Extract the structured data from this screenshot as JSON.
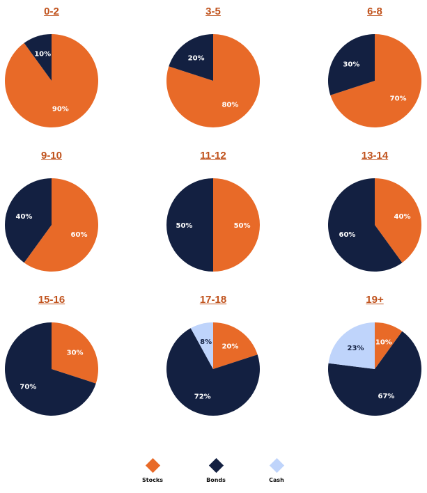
{
  "colors": {
    "stocks": "#e86a28",
    "bonds": "#132041",
    "cash": "#bfd4fb"
  },
  "legend": [
    {
      "key": "stocks",
      "label": "Stocks"
    },
    {
      "key": "bonds",
      "label": "Bonds"
    },
    {
      "key": "cash",
      "label": "Cash"
    }
  ],
  "chart_data": [
    {
      "type": "pie",
      "title": "0-2",
      "slices": [
        {
          "key": "stocks",
          "value": 90,
          "label": "90%"
        },
        {
          "key": "bonds",
          "value": 10,
          "label": "10%"
        }
      ]
    },
    {
      "type": "pie",
      "title": "3-5",
      "slices": [
        {
          "key": "stocks",
          "value": 80,
          "label": "80%"
        },
        {
          "key": "bonds",
          "value": 20,
          "label": "20%"
        }
      ]
    },
    {
      "type": "pie",
      "title": "6-8",
      "slices": [
        {
          "key": "stocks",
          "value": 70,
          "label": "70%"
        },
        {
          "key": "bonds",
          "value": 30,
          "label": "30%"
        }
      ]
    },
    {
      "type": "pie",
      "title": "9-10",
      "slices": [
        {
          "key": "stocks",
          "value": 60,
          "label": "60%"
        },
        {
          "key": "bonds",
          "value": 40,
          "label": "40%"
        }
      ]
    },
    {
      "type": "pie",
      "title": "11-12",
      "slices": [
        {
          "key": "stocks",
          "value": 50,
          "label": "50%"
        },
        {
          "key": "bonds",
          "value": 50,
          "label": "50%"
        }
      ]
    },
    {
      "type": "pie",
      "title": "13-14",
      "slices": [
        {
          "key": "stocks",
          "value": 40,
          "label": "40%"
        },
        {
          "key": "bonds",
          "value": 60,
          "label": "60%"
        }
      ]
    },
    {
      "type": "pie",
      "title": "15-16",
      "slices": [
        {
          "key": "stocks",
          "value": 30,
          "label": "30%"
        },
        {
          "key": "bonds",
          "value": 70,
          "label": "70%"
        }
      ]
    },
    {
      "type": "pie",
      "title": "17-18",
      "slices": [
        {
          "key": "stocks",
          "value": 20,
          "label": "20%"
        },
        {
          "key": "bonds",
          "value": 72,
          "label": "72%"
        },
        {
          "key": "cash",
          "value": 8,
          "label": "8%"
        }
      ]
    },
    {
      "type": "pie",
      "title": "19+",
      "slices": [
        {
          "key": "stocks",
          "value": 10,
          "label": "10%"
        },
        {
          "key": "bonds",
          "value": 67,
          "label": "67%"
        },
        {
          "key": "cash",
          "value": 23,
          "label": "23%"
        }
      ]
    }
  ]
}
